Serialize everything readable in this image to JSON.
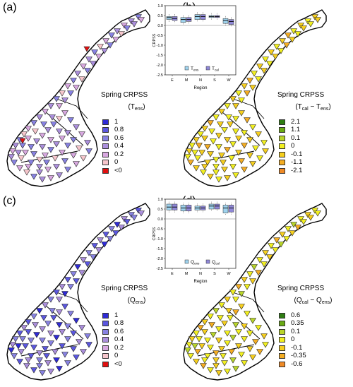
{
  "panels": [
    {
      "id": "a",
      "letter": "(a)",
      "legend_title": "Spring CRPSS",
      "legend_sub_main": "T",
      "legend_sub_idx": "ens",
      "legend_sub_pre": "(",
      "legend_sub_post": ")",
      "legend_sub_sep": "",
      "legend_sub_main2": "",
      "legend_sub_idx2": "",
      "legend_items": [
        {
          "label": "1",
          "color": "#2f2bd6"
        },
        {
          "label": "0.8",
          "color": "#5b57e0"
        },
        {
          "label": "0.6",
          "color": "#8882e2"
        },
        {
          "label": "0.4",
          "color": "#ab8fdc"
        },
        {
          "label": "0.2",
          "color": "#d8a8e0"
        },
        {
          "label": "0",
          "color": "#f6c6cc"
        },
        {
          "label": "<0",
          "color": "#e01010"
        }
      ]
    },
    {
      "id": "b",
      "letter": "(b)",
      "legend_title": "Spring CRPSS",
      "legend_sub_main": "T",
      "legend_sub_idx": "cal",
      "legend_sub_pre": "(",
      "legend_sub_post": ")",
      "legend_sub_sep": " − ",
      "legend_sub_main2": "T",
      "legend_sub_idx2": "ens",
      "legend_items": [
        {
          "label": "2.1",
          "color": "#2e7d12"
        },
        {
          "label": "1.1",
          "color": "#6aab14"
        },
        {
          "label": "0.1",
          "color": "#b9d52a"
        },
        {
          "label": "0",
          "color": "#f2f020"
        },
        {
          "label": "-0.1",
          "color": "#f6cf1e"
        },
        {
          "label": "-1.1",
          "color": "#f4ad22"
        },
        {
          "label": "-2.1",
          "color": "#ef8a26"
        }
      ]
    },
    {
      "id": "c",
      "letter": "(c)",
      "legend_title": "Spring CRPSS",
      "legend_sub_main": "Q",
      "legend_sub_idx": "ens",
      "legend_sub_pre": "(",
      "legend_sub_post": ")",
      "legend_sub_sep": "",
      "legend_sub_main2": "",
      "legend_sub_idx2": "",
      "legend_items": [
        {
          "label": "1",
          "color": "#2f2bd6"
        },
        {
          "label": "0.8",
          "color": "#5b57e0"
        },
        {
          "label": "0.6",
          "color": "#8882e2"
        },
        {
          "label": "0.4",
          "color": "#ab8fdc"
        },
        {
          "label": "0.2",
          "color": "#d8a8e0"
        },
        {
          "label": "0",
          "color": "#f6c6cc"
        },
        {
          "label": "<0",
          "color": "#e01010"
        }
      ]
    },
    {
      "id": "d",
      "letter": "(d)",
      "legend_title": "Spring CRPSS",
      "legend_sub_main": "Q",
      "legend_sub_idx": "cal",
      "legend_sub_pre": "(",
      "legend_sub_post": ")",
      "legend_sub_sep": " − ",
      "legend_sub_main2": "Q",
      "legend_sub_idx2": "ens",
      "legend_items": [
        {
          "label": "0.6",
          "color": "#2e7d12"
        },
        {
          "label": "0.35",
          "color": "#6aab14"
        },
        {
          "label": "0.1",
          "color": "#b9d52a"
        },
        {
          "label": "0",
          "color": "#f2f020"
        },
        {
          "label": "-0.1",
          "color": "#f6cf1e"
        },
        {
          "label": "-0.35",
          "color": "#f4ad22"
        },
        {
          "label": "-0.6",
          "color": "#ef8a26"
        }
      ]
    }
  ],
  "boxplots": [
    {
      "id": "top",
      "ylabel": "CRPSS",
      "xlabel": "Region",
      "categories": [
        "E",
        "M",
        "N",
        "S",
        "W"
      ],
      "yticks": [
        "1.0",
        "0.5",
        "0.0",
        "-0.5",
        "-1.0",
        "-1.5",
        "-2.0",
        "-2.5"
      ],
      "legend": [
        {
          "main": "T",
          "idx": "ens",
          "color": "#9fd3ee"
        },
        {
          "main": "T",
          "idx": "cal",
          "color": "#8f88d8"
        }
      ],
      "series": [
        {
          "name": "ens",
          "color": "#9fd3ee",
          "median": [
            0.4,
            0.3,
            0.45,
            0.45,
            0.25
          ],
          "q1": [
            0.3,
            0.15,
            0.3,
            0.4,
            0.1
          ],
          "q3": [
            0.45,
            0.4,
            0.55,
            0.5,
            0.35
          ]
        },
        {
          "name": "cal",
          "color": "#8f88d8",
          "median": [
            0.35,
            0.3,
            0.45,
            0.45,
            0.2
          ],
          "q1": [
            0.25,
            0.2,
            0.3,
            0.4,
            0.05
          ],
          "q3": [
            0.45,
            0.4,
            0.55,
            0.5,
            0.3
          ]
        }
      ]
    },
    {
      "id": "bottom",
      "ylabel": "CRPSS",
      "xlabel": "Region",
      "categories": [
        "E",
        "M",
        "N",
        "S",
        "W"
      ],
      "yticks": [
        "1.0",
        "0.5",
        "0.0",
        "-0.5",
        "-1.0",
        "-1.5",
        "-2.0",
        "-2.5"
      ],
      "legend": [
        {
          "main": "Q",
          "idx": "ens",
          "color": "#9fd3ee"
        },
        {
          "main": "Q",
          "idx": "cal",
          "color": "#8f88d8"
        }
      ],
      "series": [
        {
          "name": "ens",
          "color": "#9fd3ee",
          "median": [
            0.6,
            0.55,
            0.55,
            0.65,
            0.55
          ],
          "q1": [
            0.45,
            0.4,
            0.45,
            0.5,
            0.3
          ],
          "q3": [
            0.75,
            0.7,
            0.65,
            0.75,
            0.7
          ]
        },
        {
          "name": "cal",
          "color": "#8f88d8",
          "median": [
            0.6,
            0.55,
            0.55,
            0.65,
            0.55
          ],
          "q1": [
            0.45,
            0.4,
            0.45,
            0.5,
            0.35
          ],
          "q3": [
            0.75,
            0.7,
            0.65,
            0.75,
            0.7
          ]
        }
      ]
    }
  ]
}
